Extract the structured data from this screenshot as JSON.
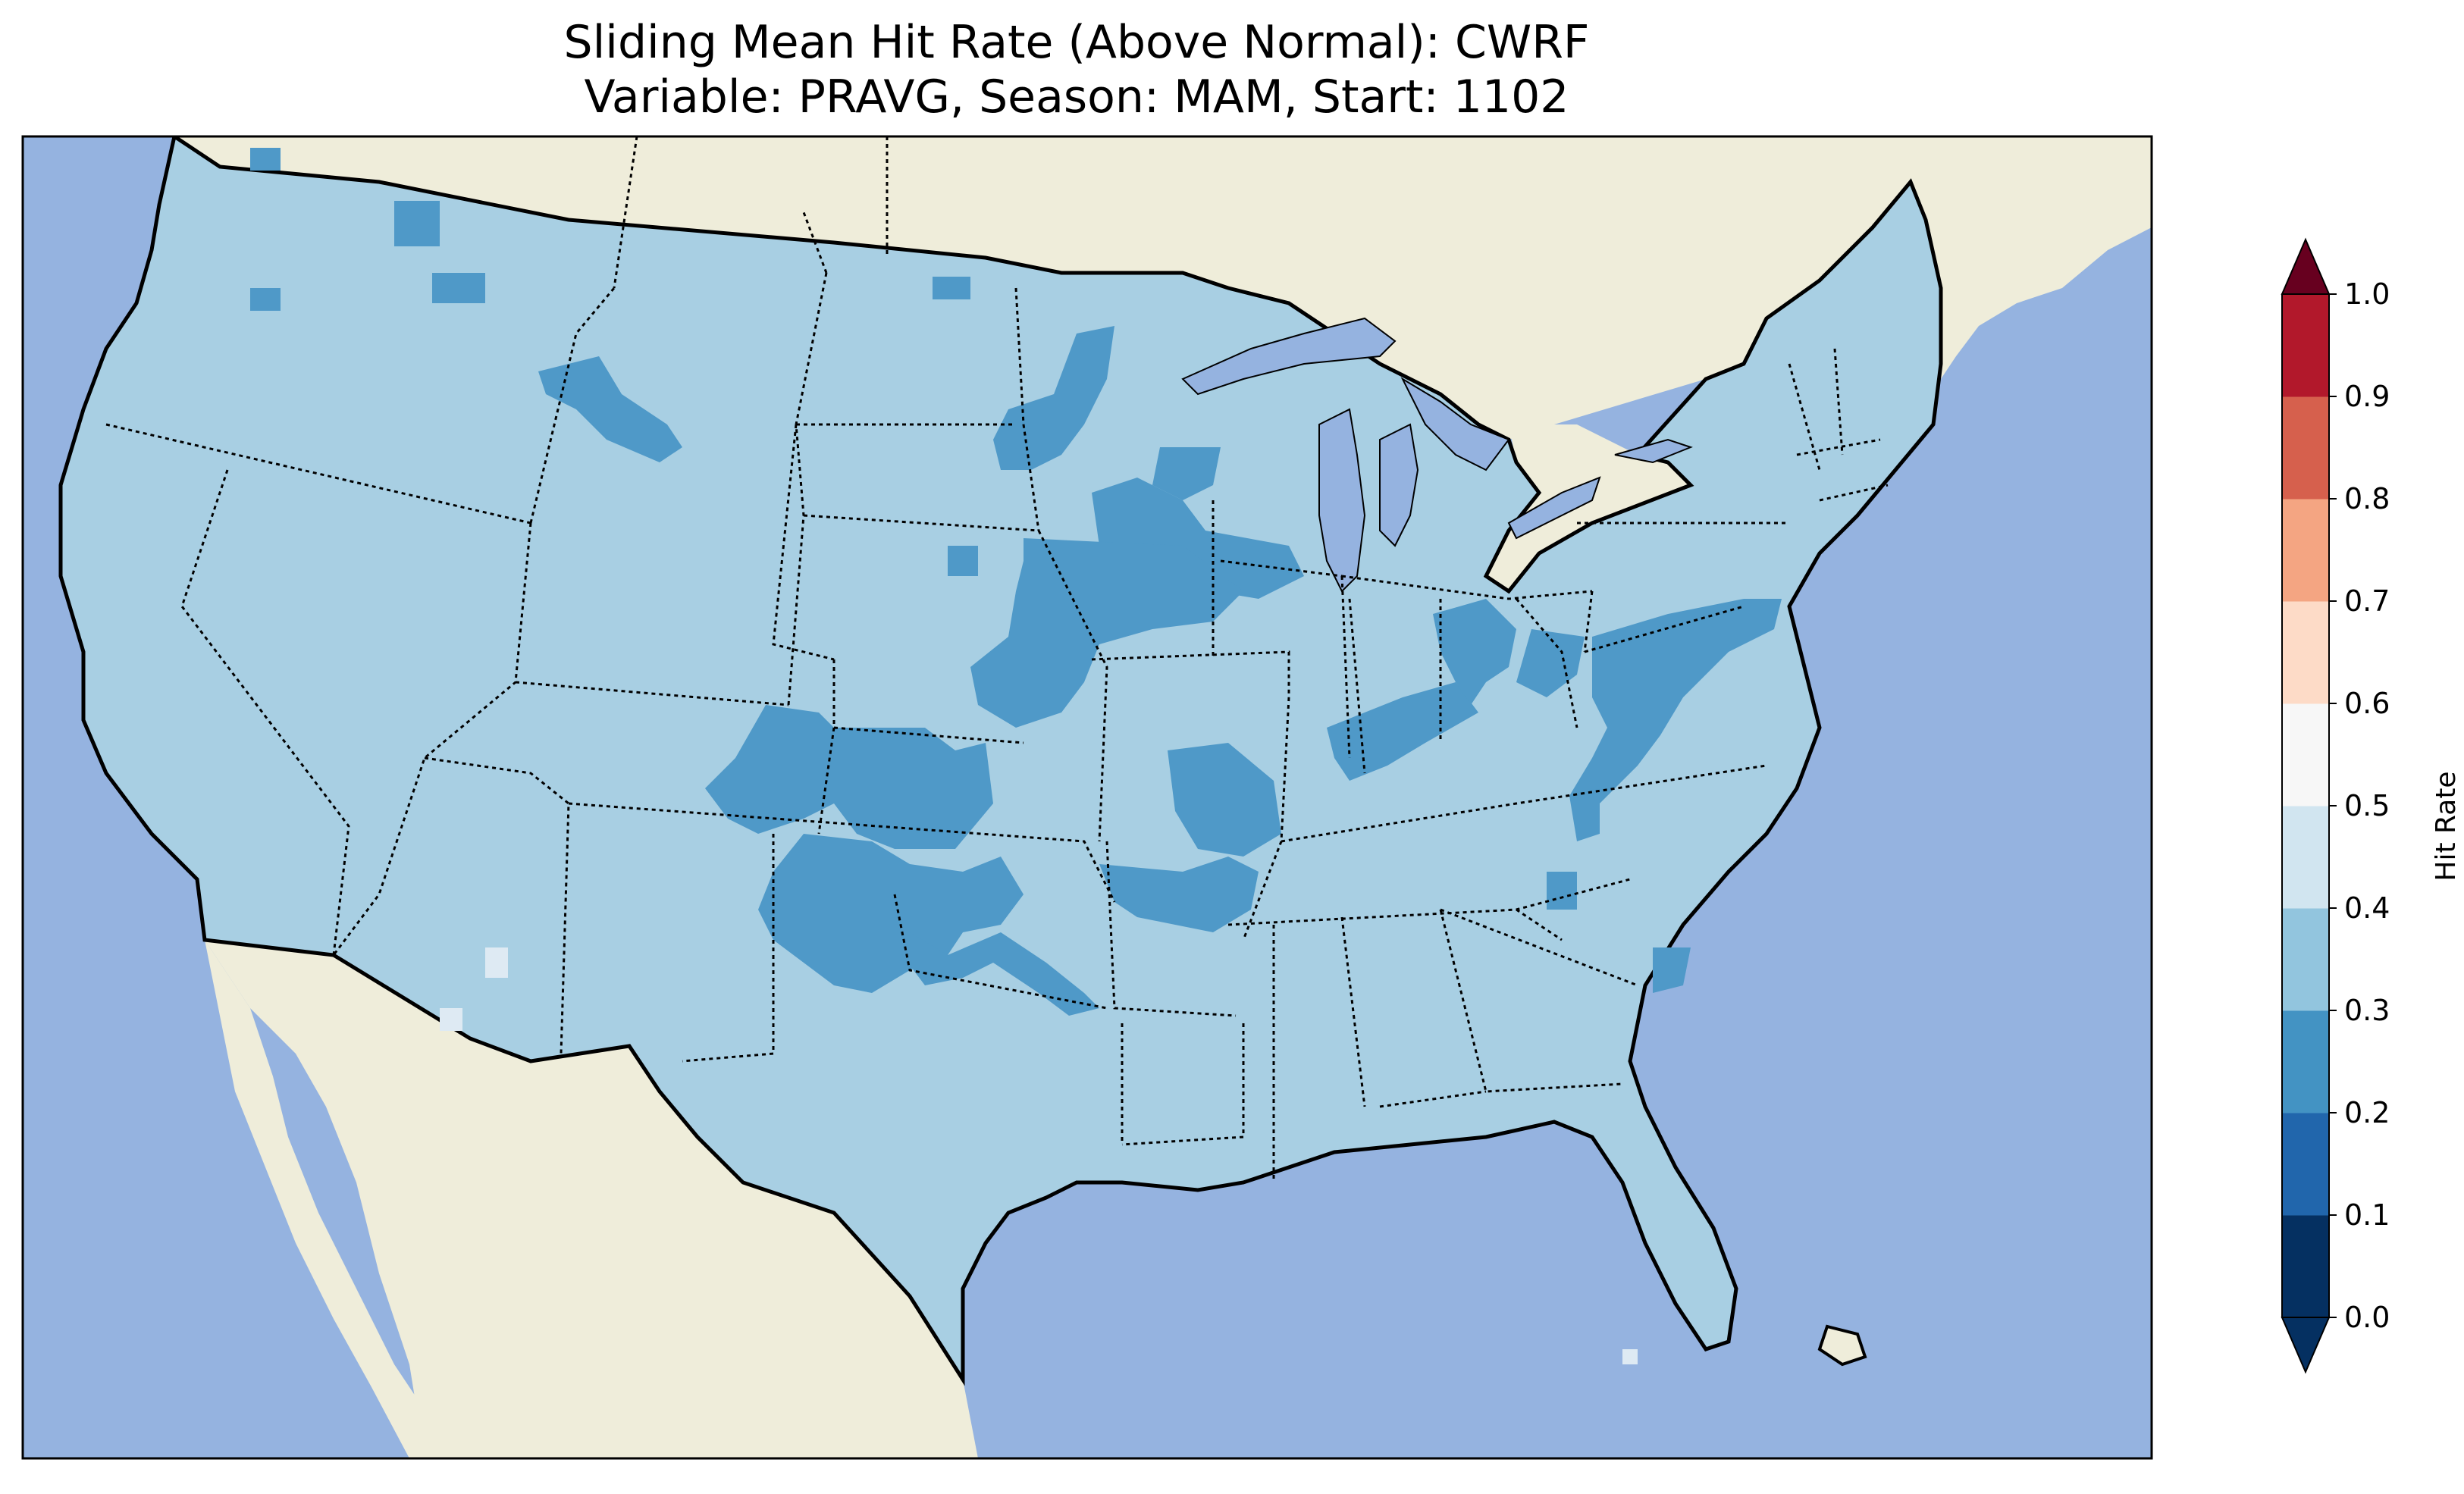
{
  "title": {
    "line1": "Sliding Mean Hit Rate (Above Normal): CWRF",
    "line2": "Variable: PRAVG, Season: MAM, Start: 1102"
  },
  "colors": {
    "ocean": "#95b3e0",
    "land_outside": "#efedda",
    "hit_0_2_0_3": "#4f99c8",
    "hit_0_3_0_4": "#a8cfe3",
    "hit_0_4_0_5": "#deeaf3",
    "lakes": "#95b3e0"
  },
  "colorbar": {
    "label": "Hit Rate",
    "ticks": [
      "0.0",
      "0.1",
      "0.2",
      "0.3",
      "0.4",
      "0.5",
      "0.6",
      "0.7",
      "0.8",
      "0.9",
      "1.0"
    ],
    "bin_colors": [
      "#053061",
      "#2166ac",
      "#4393c3",
      "#92c5de",
      "#d1e5f0",
      "#f7f7f7",
      "#fddbc7",
      "#f4a582",
      "#d6604d",
      "#b2182b",
      "#67001f"
    ],
    "extend": "both",
    "under_color": "#053061",
    "over_color": "#67001f"
  }
}
